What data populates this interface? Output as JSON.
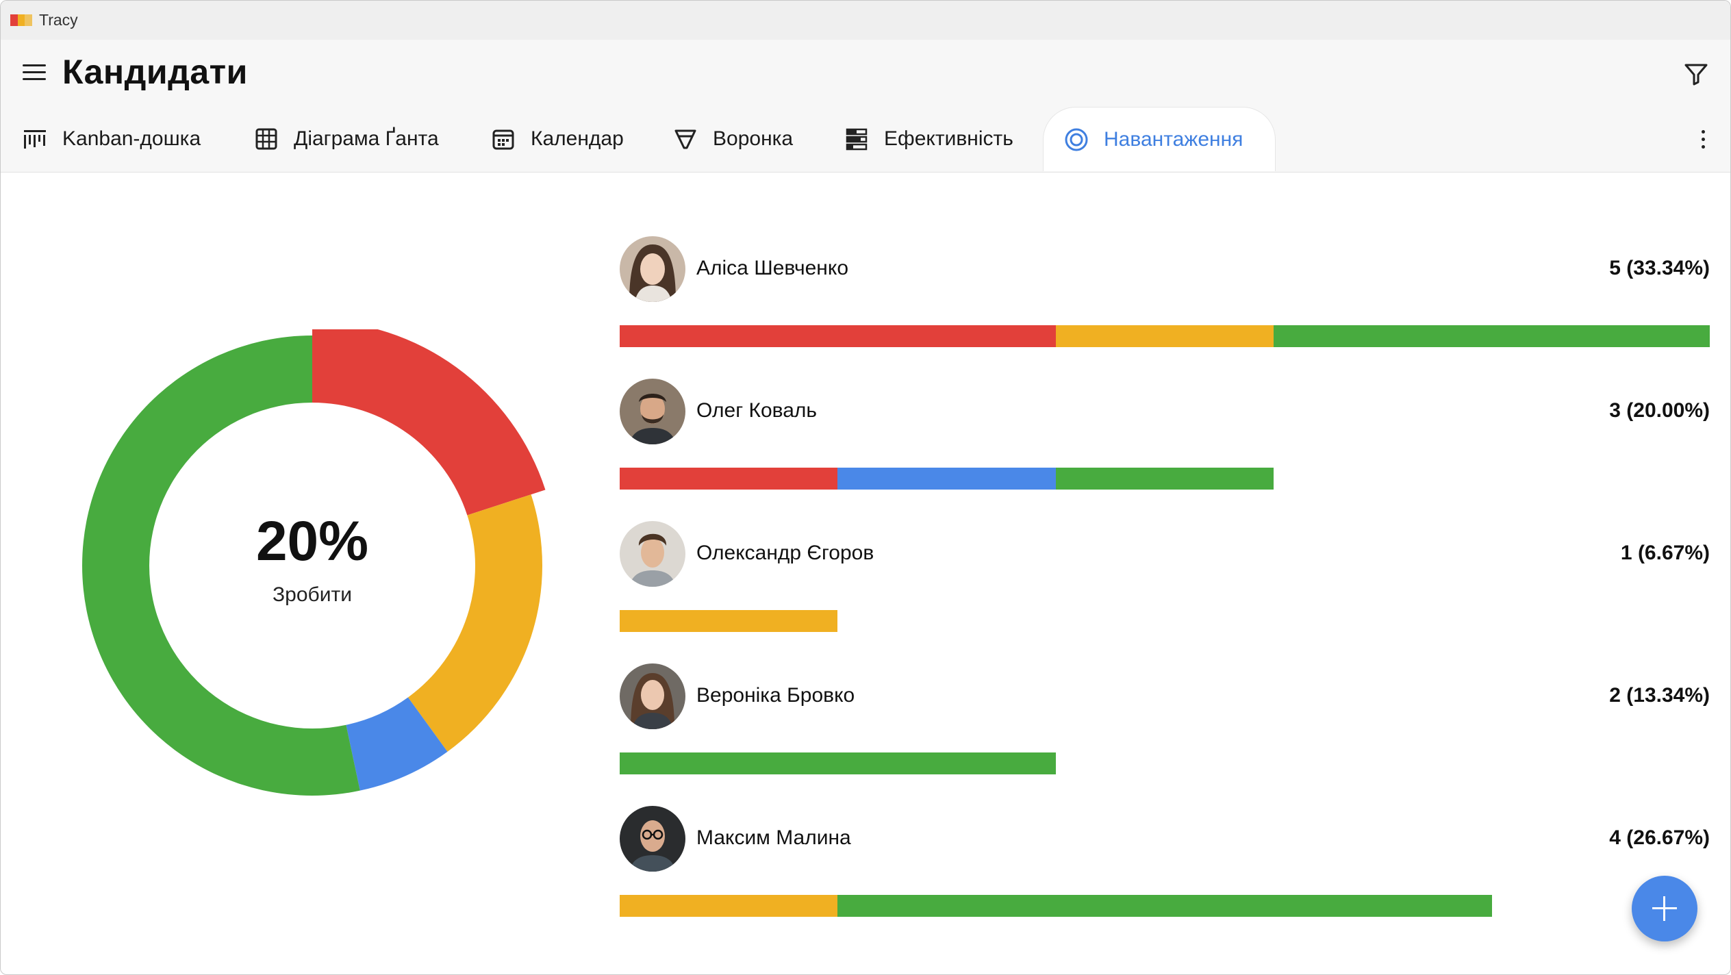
{
  "window": {
    "title": "Tracy",
    "logo_colors": [
      "#e2403a",
      "#f0b022",
      "#f0b022"
    ]
  },
  "header": {
    "title": "Кандидати",
    "menu_icon": "hamburger-icon",
    "filter_icon": "filter-icon",
    "more_icon": "more-vertical-icon"
  },
  "tabs": [
    {
      "label": "Kanban-дошка",
      "icon": "kanban-icon",
      "active": false
    },
    {
      "label": "Діаграма Ґанта",
      "icon": "gantt-icon",
      "active": false
    },
    {
      "label": "Календар",
      "icon": "calendar-icon",
      "active": false
    },
    {
      "label": "Воронка",
      "icon": "funnel-icon",
      "active": false
    },
    {
      "label": "Ефективність",
      "icon": "performance-icon",
      "active": false
    },
    {
      "label": "Навантаження",
      "icon": "workload-icon",
      "active": true
    }
  ],
  "colors": {
    "red": "#e2403a",
    "yellow": "#f0b022",
    "blue": "#4a88e8",
    "green": "#48ab3f",
    "accent": "#3f7fe0"
  },
  "donut": {
    "center_value": "20%",
    "center_label": "Зробити",
    "segments": [
      {
        "color": "#e2403a",
        "value": 20.0
      },
      {
        "color": "#f0b022",
        "value": 20.0
      },
      {
        "color": "#4a88e8",
        "value": 6.67
      },
      {
        "color": "#48ab3f",
        "value": 53.33
      }
    ]
  },
  "people": [
    {
      "name": "Аліса Шевченко",
      "value": "5 (33.34%)",
      "avatar": "avatar-photo",
      "segments": [
        {
          "color": "#e2403a",
          "units": 2
        },
        {
          "color": "#f0b022",
          "units": 1
        },
        {
          "color": "#48ab3f",
          "units": 2
        }
      ]
    },
    {
      "name": "Олег Коваль",
      "value": "3 (20.00%)",
      "avatar": "avatar-photo",
      "segments": [
        {
          "color": "#e2403a",
          "units": 1
        },
        {
          "color": "#4a88e8",
          "units": 1
        },
        {
          "color": "#48ab3f",
          "units": 1
        }
      ]
    },
    {
      "name": "Олександр Єгоров",
      "value": "1 (6.67%)",
      "avatar": "avatar-photo",
      "segments": [
        {
          "color": "#f0b022",
          "units": 1
        }
      ]
    },
    {
      "name": "Вероніка Бровко",
      "value": "2 (13.34%)",
      "avatar": "avatar-photo",
      "segments": [
        {
          "color": "#48ab3f",
          "units": 2
        }
      ]
    },
    {
      "name": "Максим Малина",
      "value": "4 (26.67%)",
      "avatar": "avatar-photo",
      "segments": [
        {
          "color": "#f0b022",
          "units": 1
        },
        {
          "color": "#48ab3f",
          "units": 3
        }
      ]
    }
  ],
  "bar_max_units": 5,
  "fab": {
    "icon": "plus-icon"
  }
}
